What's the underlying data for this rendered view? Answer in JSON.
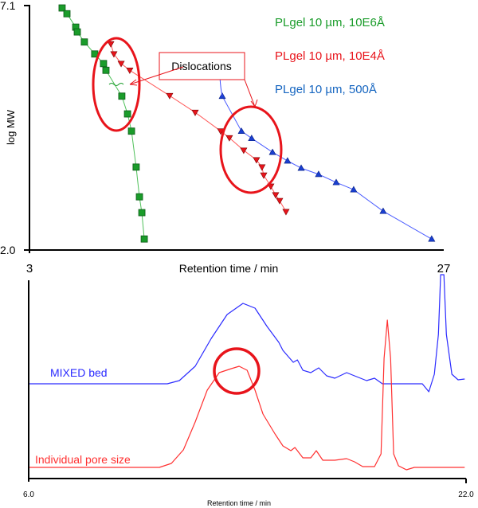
{
  "chart_data": [
    {
      "type": "scatter",
      "xlabel": "Retention time / min",
      "ylabel": "log MW",
      "xlim": [
        3,
        27
      ],
      "ylim": [
        2.0,
        7.1
      ],
      "x_tick_labels": [
        "3",
        "27"
      ],
      "y_tick_labels": [
        "7.1",
        "2.0"
      ],
      "legend_position": "top-right",
      "annotation": "Dislocations",
      "series": [
        {
          "name": "PLgel 10 µm, 10E6Å",
          "color": "#1a9c2a",
          "marker": "square",
          "x": [
            4.89,
            5.17,
            5.68,
            5.77,
            6.18,
            6.78,
            7.29,
            7.43,
            8.35,
            8.68,
            8.91,
            9.18,
            9.37,
            9.51,
            9.65
          ],
          "y": [
            7.05,
            6.93,
            6.65,
            6.55,
            6.34,
            6.09,
            5.89,
            5.75,
            5.21,
            4.84,
            4.48,
            3.73,
            3.11,
            2.78,
            2.23
          ]
        },
        {
          "name": "PLgel 10 µm, 10E4Å",
          "color": "#e8141b",
          "marker": "triangle-down",
          "x": [
            7.71,
            7.89,
            8.31,
            8.81,
            11.12,
            12.6,
            14.08,
            14.58,
            15.41,
            16.15,
            16.47,
            16.57,
            16.98,
            17.26,
            17.49,
            17.86
          ],
          "y": [
            6.3,
            6.09,
            5.89,
            5.75,
            5.22,
            4.87,
            4.48,
            4.34,
            4.08,
            3.88,
            3.73,
            3.56,
            3.33,
            3.15,
            3.03,
            2.8
          ]
        },
        {
          "name": "PLgel 10 µm, 500Å",
          "color": "#1565c0",
          "marker": "triangle-up",
          "x": [
            14.17,
            15.28,
            15.87,
            17.08,
            17.95,
            18.74,
            19.75,
            20.77,
            21.78,
            23.49,
            26.3
          ],
          "y": [
            5.21,
            4.48,
            4.33,
            4.04,
            3.86,
            3.71,
            3.58,
            3.41,
            3.26,
            2.81,
            2.23
          ]
        }
      ]
    },
    {
      "type": "line",
      "xlabel": "Retention time / min",
      "xlim": [
        6.0,
        22.0
      ],
      "x_tick_labels": [
        "6.0",
        "22.0"
      ],
      "series": [
        {
          "name": "MIXED bed",
          "color": "#2b2bff",
          "x": [
            6.03,
            11.07,
            11.51,
            12.09,
            12.68,
            13.26,
            13.84,
            14.28,
            14.72,
            15.15,
            15.3,
            15.5,
            15.68,
            15.83,
            16.03,
            16.32,
            16.61,
            16.9,
            17.2,
            17.63,
            17.92,
            18.36,
            18.65,
            18.94,
            20.11,
            20.4,
            20.64,
            20.84,
            20.99,
            21.07,
            21.19,
            21.28,
            21.48,
            21.71,
            21.95
          ],
          "y": [
            0,
            0,
            4,
            22,
            57,
            87,
            101,
            95,
            72,
            52,
            42,
            34,
            27,
            30,
            17,
            14,
            20,
            10,
            7,
            14,
            10,
            4,
            7,
            0,
            0,
            0,
            -10,
            12,
            62,
            137,
            137,
            62,
            12,
            5,
            6
          ]
        },
        {
          "name": "Individual pore size",
          "color": "#ff3030",
          "x": [
            6.03,
            10.78,
            11.22,
            11.66,
            12.09,
            12.53,
            12.97,
            13.41,
            13.7,
            13.99,
            14.28,
            14.57,
            15.01,
            15.3,
            15.59,
            15.74,
            16.03,
            16.32,
            16.52,
            16.76,
            17.2,
            17.63,
            17.92,
            18.22,
            18.65,
            18.89,
            19.0,
            19.12,
            19.24,
            19.35,
            19.53,
            19.82,
            20.11,
            20.99,
            21.95
          ],
          "y": [
            0,
            0,
            5,
            22,
            57,
            97,
            119,
            124,
            127,
            122,
            97,
            67,
            42,
            27,
            21,
            25,
            12,
            12,
            21,
            9,
            9,
            11,
            7,
            1,
            1,
            17,
            137,
            185,
            137,
            17,
            2,
            -3,
            0,
            0,
            0
          ]
        }
      ]
    }
  ]
}
